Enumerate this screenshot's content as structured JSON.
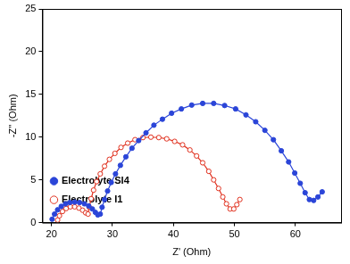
{
  "chart_data": {
    "type": "line",
    "x_label": "Z' (Ohm)",
    "y_label": "-Z'' (Ohm)",
    "xlim": [
      18.5,
      67.5
    ],
    "xticks": [
      20,
      30,
      40,
      50,
      60
    ],
    "ylim": [
      0,
      25
    ],
    "yticks": [
      0,
      5,
      10,
      15,
      20,
      25
    ],
    "grid": false,
    "legend": "top-right",
    "series": [
      {
        "name": "Electrolyte SI4",
        "color": "#2b45d8",
        "marker": "circle",
        "x": [
          20.1,
          20.5,
          21.0,
          21.6,
          22.3,
          23.0,
          23.8,
          24.6,
          25.4,
          26.1,
          26.7,
          27.2,
          27.6,
          28.0,
          28.3,
          28.7,
          29.2,
          29.8,
          30.5,
          31.3,
          32.2,
          33.2,
          34.3,
          35.5,
          36.8,
          38.2,
          39.7,
          41.3,
          43.0,
          44.8,
          46.6,
          48.4,
          50.2,
          51.9,
          53.5,
          55.0,
          56.4,
          57.7,
          58.9,
          59.9,
          60.8,
          61.6,
          62.3,
          63.0,
          63.7,
          64.4
        ],
        "values": [
          0.4,
          1.0,
          1.5,
          1.9,
          2.2,
          2.35,
          2.4,
          2.35,
          2.2,
          1.95,
          1.6,
          1.2,
          0.9,
          1.0,
          1.8,
          2.7,
          3.7,
          4.7,
          5.7,
          6.7,
          7.7,
          8.7,
          9.6,
          10.5,
          11.4,
          12.1,
          12.8,
          13.3,
          13.75,
          13.95,
          13.95,
          13.7,
          13.3,
          12.6,
          11.8,
          10.8,
          9.7,
          8.4,
          7.1,
          5.8,
          4.6,
          3.5,
          2.7,
          2.6,
          3.0,
          3.6
        ]
      },
      {
        "name": "Electrolyte I1",
        "color": "#e0301e",
        "marker": "open_circle",
        "x": [
          21.0,
          21.3,
          21.8,
          22.4,
          23.1,
          23.8,
          24.5,
          25.1,
          25.6,
          26.0,
          26.2,
          26.5,
          26.9,
          27.4,
          28.0,
          28.7,
          29.5,
          30.4,
          31.4,
          32.5,
          33.7,
          35.0,
          36.3,
          37.6,
          38.9,
          40.2,
          41.5,
          42.7,
          43.8,
          44.8,
          45.8,
          46.6,
          47.4,
          48.1,
          48.7,
          49.3,
          49.9,
          50.4,
          50.9
        ],
        "values": [
          0.3,
          0.8,
          1.3,
          1.65,
          1.85,
          1.85,
          1.7,
          1.45,
          1.15,
          1.0,
          1.8,
          2.8,
          3.8,
          4.8,
          5.7,
          6.6,
          7.4,
          8.1,
          8.8,
          9.3,
          9.7,
          9.95,
          10.0,
          9.95,
          9.8,
          9.5,
          9.1,
          8.5,
          7.8,
          7.0,
          6.0,
          5.0,
          4.0,
          3.0,
          2.2,
          1.6,
          1.6,
          2.1,
          2.7
        ]
      }
    ]
  }
}
